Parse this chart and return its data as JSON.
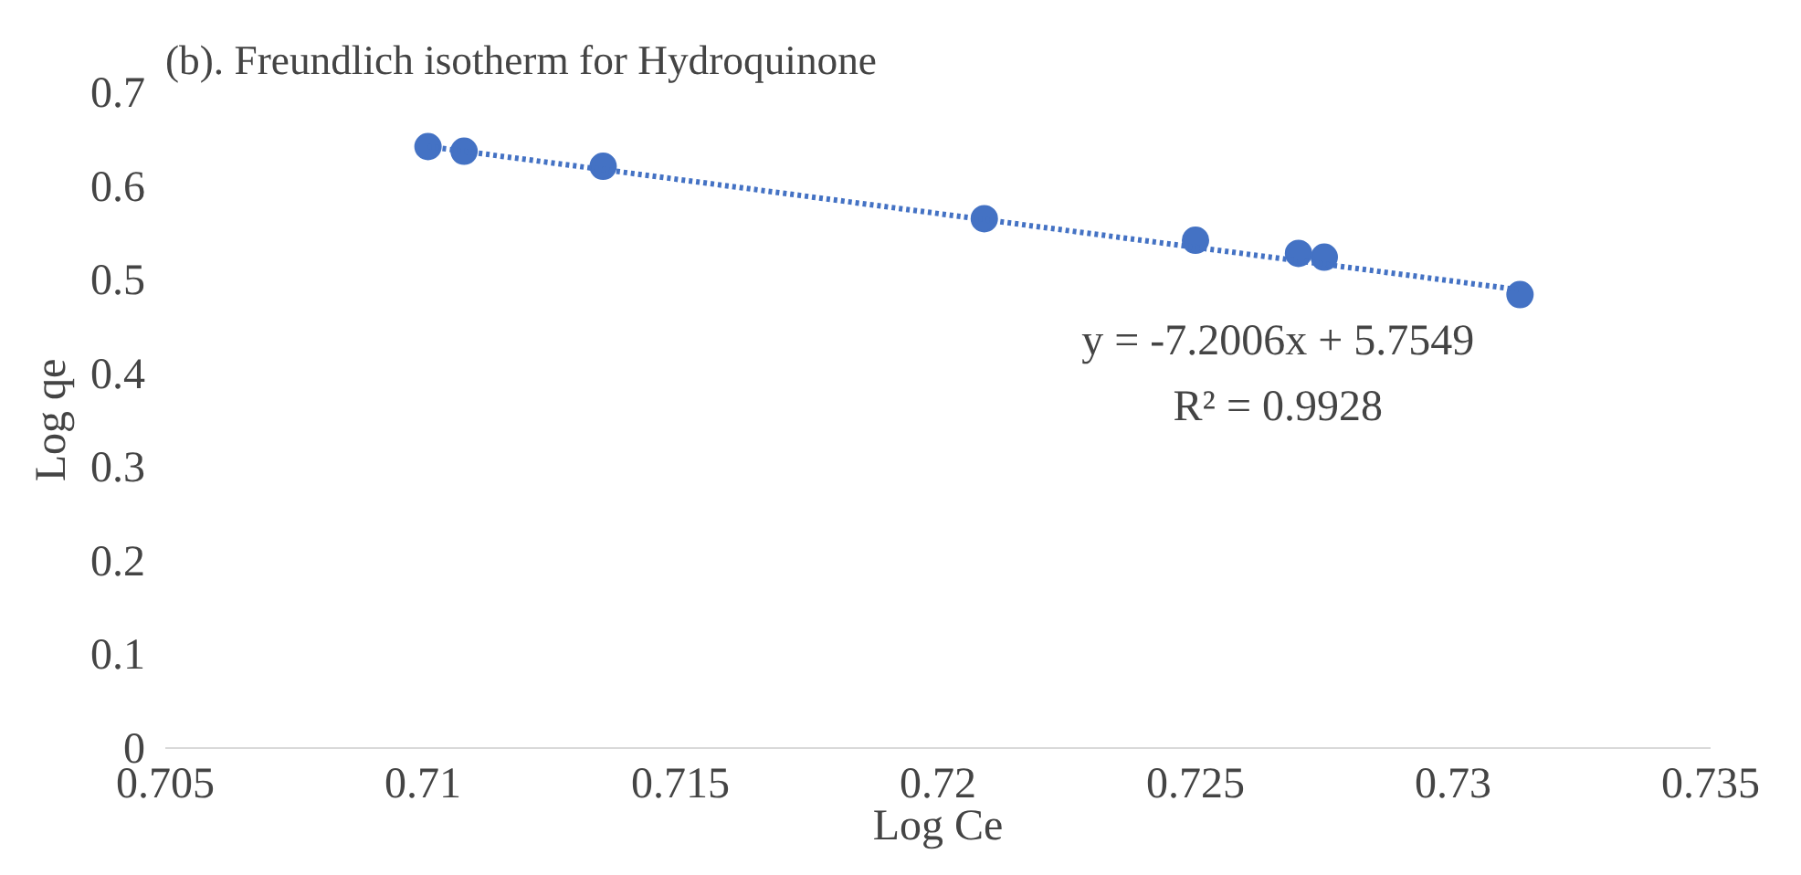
{
  "chart_data": {
    "type": "scatter",
    "title": "(b). Freundlich isotherm for Hydroquinone",
    "xlabel": "Log Ce",
    "ylabel": "Log qe",
    "series": [
      {
        "color": "#4472c4",
        "x": [
          0.7101,
          0.7108,
          0.7135,
          0.7209,
          0.725,
          0.727,
          0.7275,
          0.7313
        ],
        "values": [
          0.642,
          0.637,
          0.621,
          0.565,
          0.542,
          0.528,
          0.524,
          0.484
        ],
        "marker": "circle"
      },
      {
        "type": "line",
        "color": "#4472c4",
        "x": [
          0.7101,
          0.7313
        ],
        "values": [
          0.642,
          0.489
        ],
        "line_style": "dotted"
      }
    ],
    "annotations": [
      "y = -7.2006x + 5.7549",
      "R² = 0.9928"
    ],
    "xlim": [
      0.705,
      0.735
    ],
    "xticks": [
      0.705,
      0.71,
      0.715,
      0.72,
      0.725,
      0.73,
      0.735
    ],
    "ylim": [
      0,
      0.7
    ],
    "yticks": [
      0,
      0.1,
      0.2,
      0.3,
      0.4,
      0.5,
      0.6,
      0.7
    ],
    "grid": false
  }
}
